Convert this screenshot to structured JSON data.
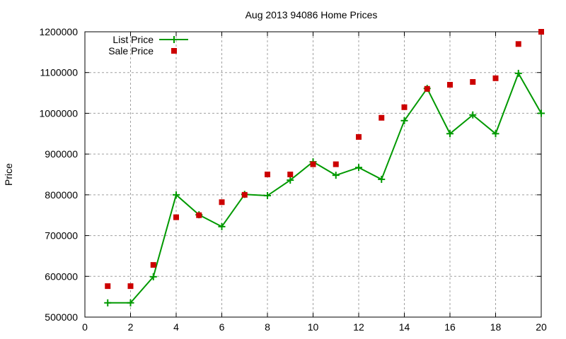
{
  "chart_data": {
    "type": "line",
    "title": "Aug 2013 94086 Home Prices",
    "xlabel": "",
    "ylabel": "Price",
    "xlim": [
      0,
      20
    ],
    "ylim": [
      500000,
      1200000
    ],
    "xticks": [
      0,
      2,
      4,
      6,
      8,
      10,
      12,
      14,
      16,
      18,
      20
    ],
    "yticks": [
      500000,
      600000,
      700000,
      800000,
      900000,
      1000000,
      1100000,
      1200000
    ],
    "grid": true,
    "legend_position": "top-left",
    "x": [
      1,
      2,
      3,
      4,
      5,
      6,
      7,
      8,
      9,
      10,
      11,
      12,
      13,
      14,
      15,
      16,
      17,
      18,
      19,
      20
    ],
    "series": [
      {
        "name": "List Price",
        "style": "linespoints",
        "color": "#009900",
        "values": [
          535000,
          535000,
          599000,
          800000,
          751000,
          722000,
          801000,
          798000,
          836000,
          881000,
          848000,
          867000,
          838000,
          982000,
          1061000,
          950000,
          996000,
          950000,
          1098000,
          1000000
        ]
      },
      {
        "name": "Sale Price",
        "style": "points",
        "color": "#cc0000",
        "values": [
          576000,
          576000,
          628000,
          745000,
          750000,
          782000,
          800000,
          850000,
          850000,
          875000,
          875000,
          942000,
          989000,
          1015000,
          1060000,
          1070000,
          1077000,
          1086000,
          1170000,
          1200000
        ]
      }
    ]
  }
}
